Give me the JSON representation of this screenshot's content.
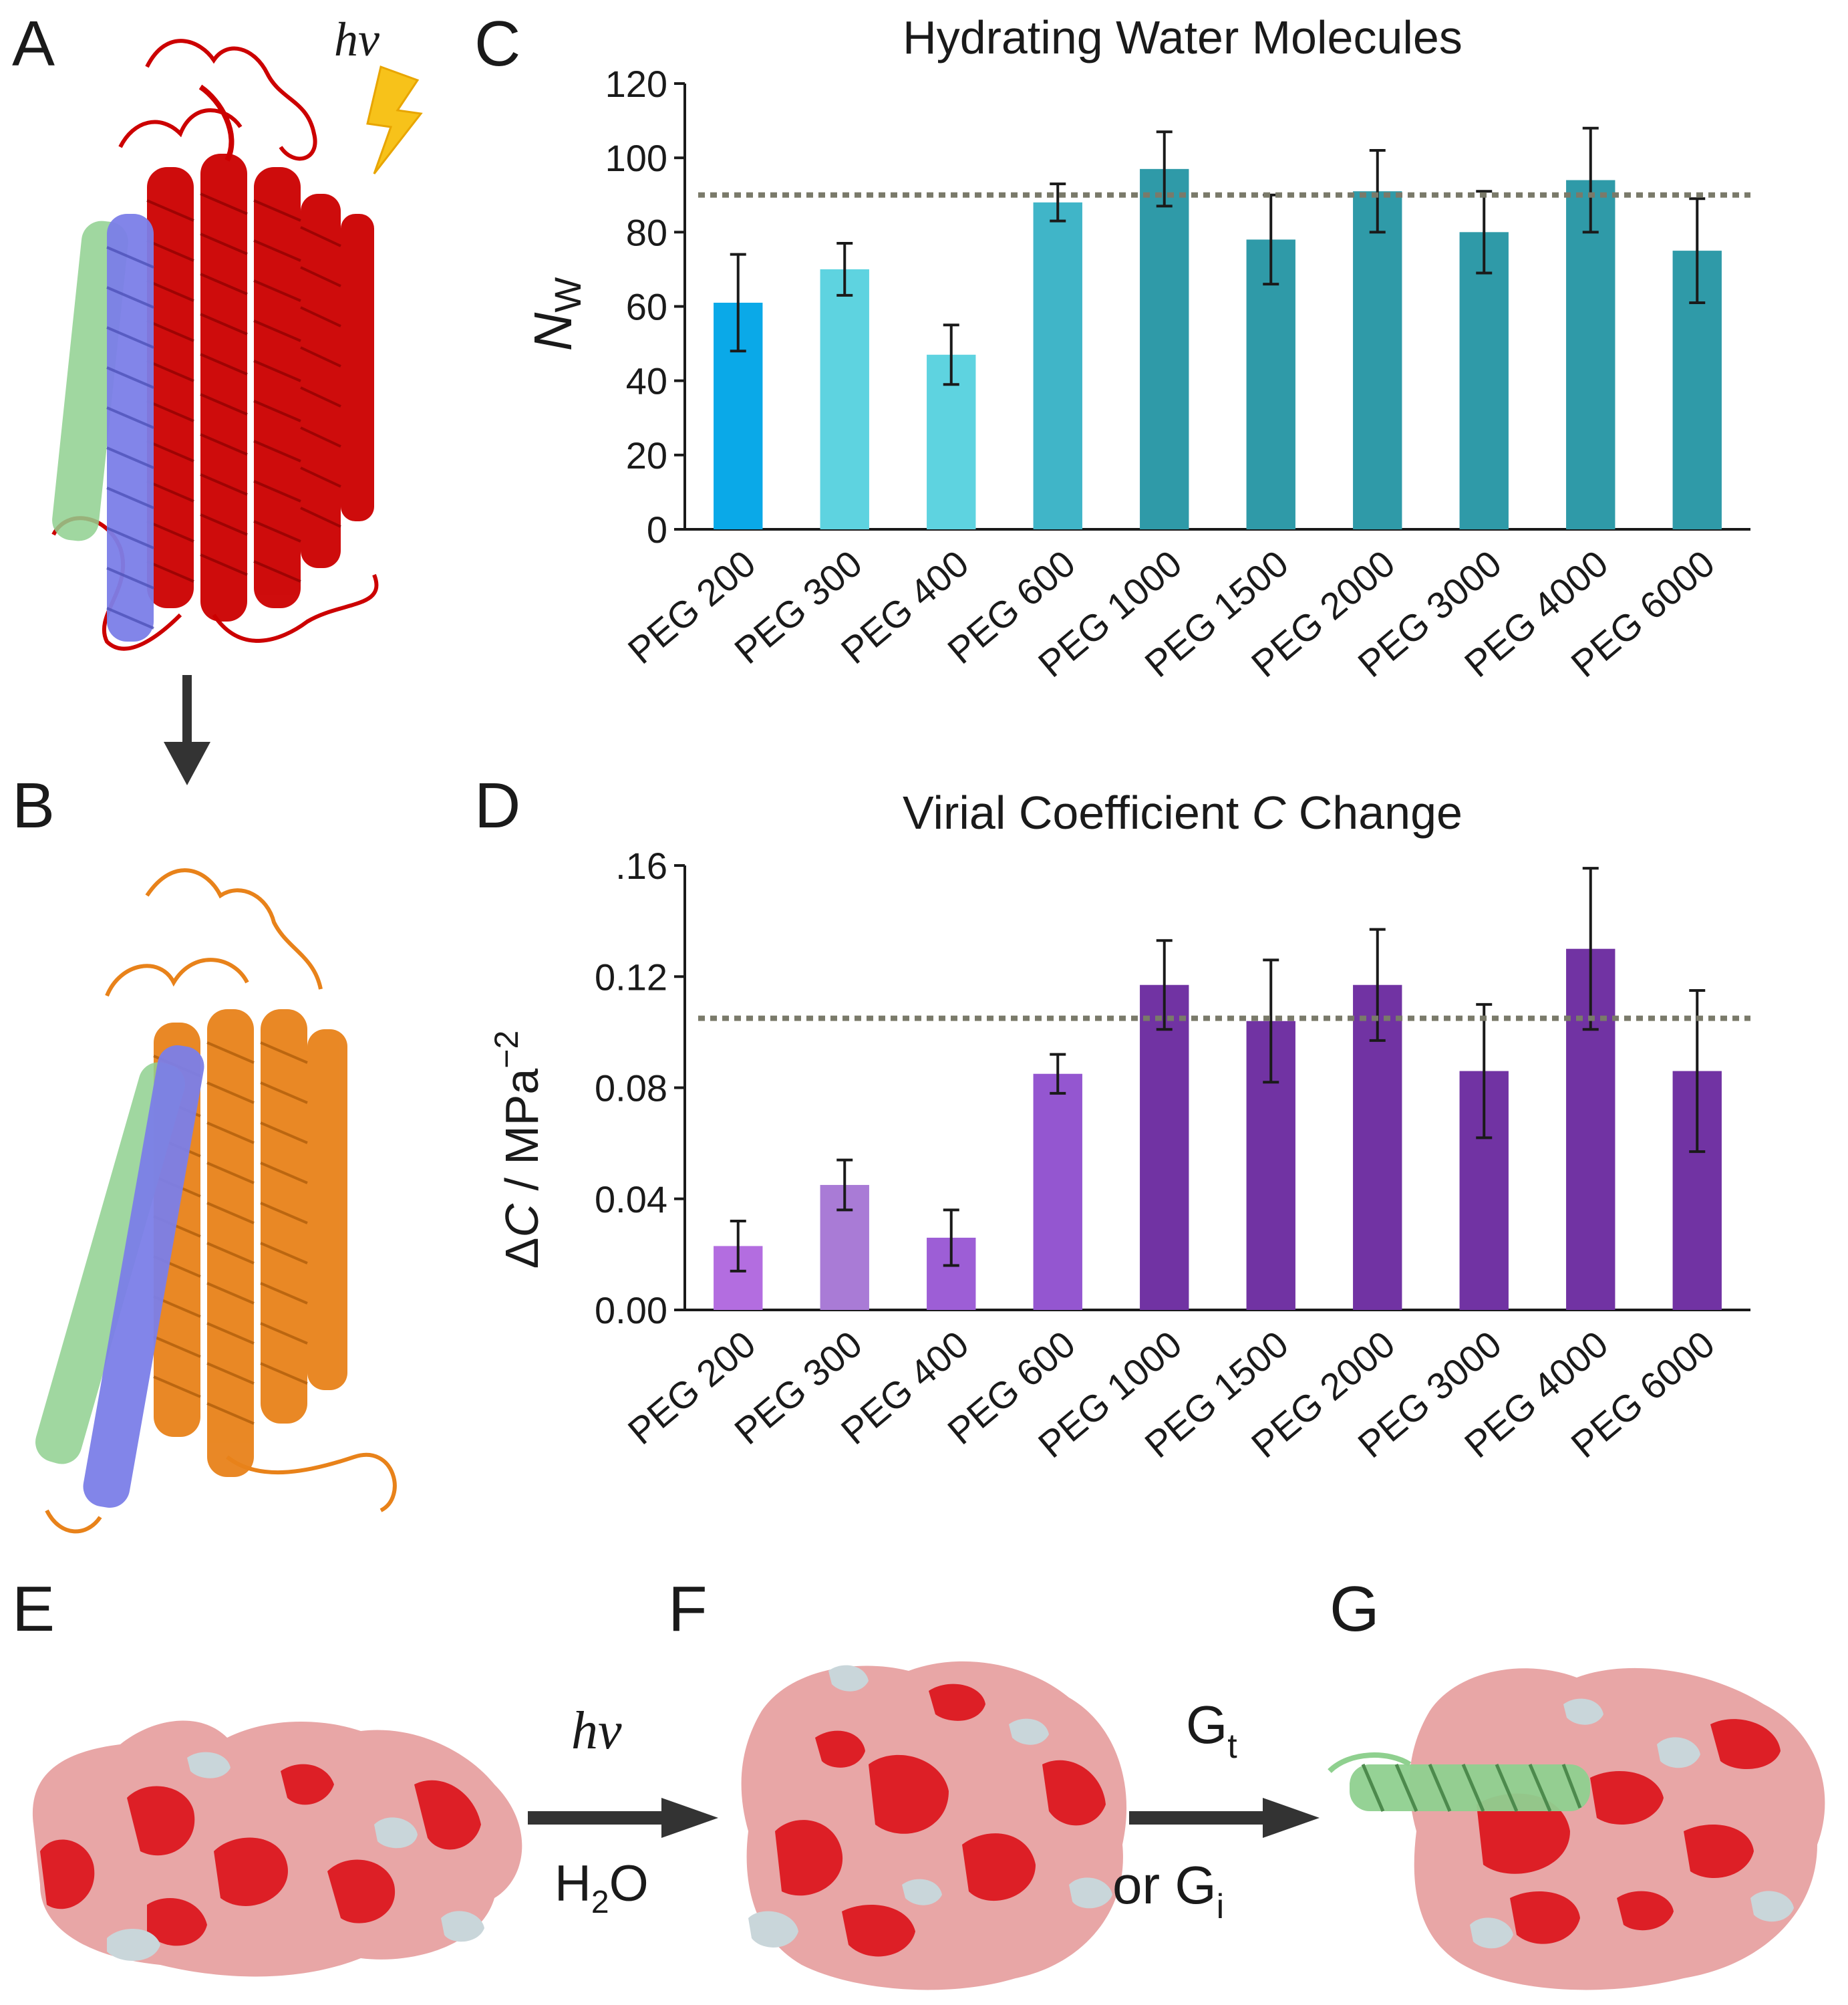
{
  "panels": {
    "A": "A",
    "B": "B",
    "C": "C",
    "D": "D",
    "E": "E",
    "F": "F",
    "G": "G"
  },
  "labels": {
    "hv": "hv",
    "h2o_main": "H",
    "h2o_sub": "2",
    "h2o_end": "O",
    "gt_main": "G",
    "gt_sub": "t",
    "gi_main": "or G",
    "gi_sub": "i"
  },
  "colors": {
    "ribbon_dark_state": "#cc0000",
    "ribbon_meta_state": "#e8821a",
    "helix_blue": "#7b7ee8",
    "helix_green": "#8fd08f",
    "surface_red": "#dd1f26",
    "surface_pink": "#e8a6a6",
    "surface_grey": "#c9d6da",
    "lightning": "#f7c21a",
    "reference_line": "#7a7a6a"
  },
  "chart_data": [
    {
      "id": "C",
      "type": "bar",
      "title": "Hydrating Water Molecules",
      "ylabel_main": "N",
      "ylabel_sub": "W",
      "categories": [
        "PEG 200",
        "PEG 300",
        "PEG 400",
        "PEG 600",
        "PEG 1000",
        "PEG 1500",
        "PEG 2000",
        "PEG 3000",
        "PEG 4000",
        "PEG 6000"
      ],
      "values": [
        61,
        70,
        47,
        88,
        97,
        78,
        91,
        80,
        94,
        75
      ],
      "errors": [
        13,
        7,
        8,
        5,
        10,
        12,
        11,
        11,
        14,
        14
      ],
      "colors": [
        "#0aa9e8",
        "#5ed3e0",
        "#5ed3e0",
        "#40b5c8",
        "#2f9aa8",
        "#2f9aa8",
        "#2f9aa8",
        "#2f9aa8",
        "#2f9aa8",
        "#2f9aa8"
      ],
      "ylim": [
        0,
        120
      ],
      "yticks": [
        "0",
        "20",
        "40",
        "60",
        "80",
        "100",
        "120"
      ],
      "ytick_values": [
        0,
        20,
        40,
        60,
        80,
        100,
        120
      ],
      "reference_line": 90
    },
    {
      "id": "D",
      "type": "bar",
      "title_part1": "Virial Coefficient ",
      "title_italic": "C",
      "title_part2": " Change",
      "ylabel_delta": "Δ",
      "ylabel_italic": "C",
      "ylabel_rest": " / MPa",
      "ylabel_sup": "−2",
      "categories": [
        "PEG 200",
        "PEG 300",
        "PEG 400",
        "PEG 600",
        "PEG 1000",
        "PEG 1500",
        "PEG 2000",
        "PEG 3000",
        "PEG 4000",
        "PEG 6000"
      ],
      "values": [
        0.023,
        0.045,
        0.026,
        0.085,
        0.117,
        0.104,
        0.117,
        0.086,
        0.13,
        0.086
      ],
      "errors": [
        0.009,
        0.009,
        0.01,
        0.007,
        0.016,
        0.022,
        0.02,
        0.024,
        0.029,
        0.029
      ],
      "colors": [
        "#b36de0",
        "#a97bd6",
        "#9d5ed6",
        "#9456d0",
        "#7133a3",
        "#7133a3",
        "#7133a3",
        "#7133a3",
        "#7133a3",
        "#7133a3"
      ],
      "ylim": [
        0,
        0.16
      ],
      "yticks": [
        "0.00",
        "0.04",
        "0.08",
        "0.12",
        ".16"
      ],
      "ytick_values": [
        0,
        0.04,
        0.08,
        0.12,
        0.16
      ],
      "reference_line": 0.105
    }
  ]
}
